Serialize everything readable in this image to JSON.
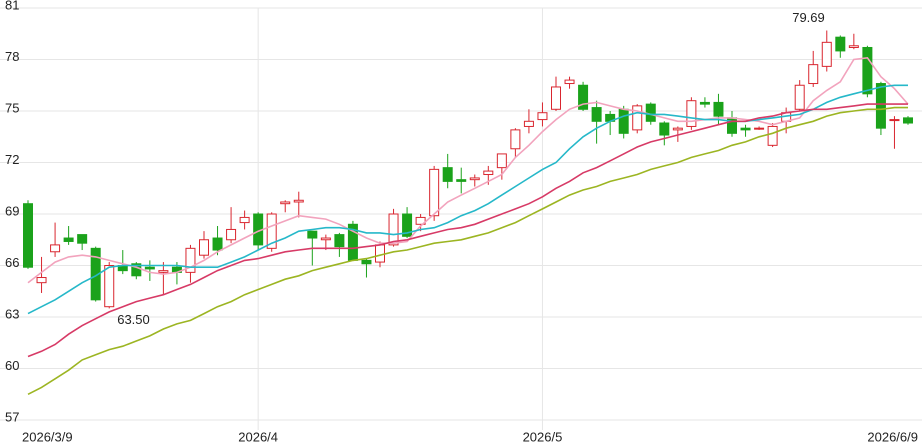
{
  "chart_data": {
    "type": "candlestick",
    "categories": [
      "2026/3/9",
      null,
      null,
      null,
      null,
      null,
      null,
      null,
      null,
      null,
      null,
      null,
      null,
      null,
      null,
      null,
      null,
      "2026/4",
      null,
      null,
      null,
      null,
      null,
      null,
      null,
      null,
      null,
      null,
      null,
      null,
      null,
      null,
      null,
      null,
      null,
      null,
      null,
      null,
      "2026/5",
      null,
      null,
      null,
      null,
      null,
      null,
      null,
      null,
      null,
      null,
      null,
      null,
      null,
      null,
      null,
      null,
      null,
      null,
      null,
      null,
      null,
      null,
      null,
      null,
      null,
      null,
      "2026/6/9"
    ],
    "open": [
      69.6,
      65.0,
      66.8,
      67.6,
      67.8,
      67.0,
      63.6,
      66.0,
      66.1,
      65.9,
      65.6,
      65.9,
      65.6,
      66.6,
      67.6,
      67.5,
      68.5,
      69.0,
      67.0,
      69.6,
      69.7,
      68.0,
      67.5,
      67.8,
      68.4,
      66.3,
      66.2,
      67.2,
      69.0,
      68.4,
      68.9,
      71.7,
      71.0,
      71.0,
      71.3,
      71.7,
      72.8,
      74.1,
      74.5,
      75.1,
      76.6,
      76.5,
      75.2,
      74.8,
      75.1,
      73.9,
      75.4,
      74.3,
      73.9,
      74.1,
      75.5,
      75.5,
      74.6,
      74.0,
      74.0,
      73.0,
      74.4,
      75.1,
      76.6,
      77.6,
      79.3,
      78.7,
      78.7,
      76.6,
      74.5,
      74.6
    ],
    "high": [
      69.8,
      66.5,
      68.5,
      68.3,
      67.8,
      67.1,
      66.2,
      66.9,
      66.2,
      66.3,
      66.2,
      66.2,
      67.2,
      68.0,
      68.3,
      69.4,
      69.2,
      69.1,
      69.1,
      69.8,
      70.3,
      68.0,
      67.8,
      67.9,
      68.6,
      66.4,
      67.4,
      69.3,
      69.4,
      69.0,
      71.8,
      72.5,
      71.7,
      71.3,
      71.8,
      72.5,
      74.0,
      75.1,
      75.5,
      77.0,
      77.0,
      76.7,
      75.6,
      75.0,
      75.3,
      75.4,
      75.5,
      74.4,
      74.1,
      75.8,
      75.8,
      76.0,
      75.0,
      74.2,
      74.1,
      74.3,
      75.2,
      76.8,
      78.5,
      79.69,
      79.4,
      79.5,
      78.8,
      76.7,
      74.7,
      74.7
    ],
    "low": [
      65.8,
      64.4,
      66.5,
      67.2,
      66.9,
      63.9,
      63.5,
      65.5,
      65.2,
      65.1,
      64.3,
      64.9,
      65.0,
      66.4,
      66.6,
      67.3,
      68.1,
      66.9,
      66.8,
      69.1,
      68.8,
      66.0,
      66.9,
      66.5,
      66.3,
      65.3,
      65.9,
      67.1,
      67.6,
      68.0,
      68.6,
      70.5,
      70.2,
      70.6,
      70.7,
      71.0,
      72.3,
      73.7,
      74.1,
      75.0,
      76.3,
      75.0,
      73.1,
      73.6,
      73.4,
      73.7,
      74.2,
      73.0,
      73.2,
      73.9,
      75.2,
      74.2,
      73.5,
      73.5,
      73.9,
      72.9,
      73.7,
      75.0,
      76.4,
      77.3,
      78.1,
      78.6,
      75.8,
      73.6,
      72.8,
      74.2
    ],
    "close": [
      65.9,
      65.3,
      67.2,
      67.4,
      67.3,
      64.0,
      66.0,
      65.7,
      65.4,
      65.8,
      65.7,
      65.6,
      67.0,
      67.5,
      66.9,
      68.1,
      68.8,
      67.2,
      69.0,
      69.7,
      69.8,
      67.6,
      67.6,
      67.1,
      66.3,
      66.1,
      67.2,
      69.0,
      67.7,
      68.8,
      71.6,
      70.9,
      70.9,
      71.1,
      71.5,
      72.5,
      73.9,
      74.4,
      74.9,
      76.4,
      76.8,
      75.1,
      74.4,
      74.4,
      73.7,
      75.3,
      74.4,
      73.6,
      74.0,
      75.6,
      75.4,
      74.7,
      73.7,
      73.9,
      74.0,
      74.1,
      74.9,
      76.5,
      77.7,
      79.0,
      78.5,
      78.8,
      76.0,
      74.0,
      74.5,
      74.3
    ],
    "up_color": "#d9262f",
    "down_color": "#1ba21b",
    "series": [
      {
        "color": "#f2a3bd",
        "values": [
          65.0,
          65.6,
          66.2,
          66.5,
          66.6,
          66.5,
          66.3,
          66.1,
          65.9,
          65.6,
          65.5,
          65.6,
          65.9,
          66.3,
          66.8,
          67.2,
          67.6,
          68.0,
          68.3,
          68.6,
          68.9,
          68.8,
          68.7,
          68.4,
          68.0,
          67.6,
          67.3,
          67.3,
          67.4,
          68.3,
          69.0,
          69.7,
          70.1,
          70.5,
          70.9,
          71.3,
          72.3,
          73.0,
          73.8,
          74.5,
          75.1,
          75.4,
          75.5,
          75.3,
          75.1,
          75.0,
          74.8,
          74.6,
          74.4,
          74.4,
          74.5,
          74.6,
          74.6,
          74.5,
          74.4,
          74.2,
          74.4,
          74.6,
          75.6,
          76.2,
          76.7,
          78.0,
          78.1,
          77.0,
          76.3,
          75.4
        ]
      },
      {
        "color": "#26b8c9",
        "values": [
          63.2,
          63.6,
          64.0,
          64.5,
          65.0,
          65.4,
          65.9,
          66.0,
          66.0,
          66.0,
          66.0,
          66.0,
          65.9,
          65.9,
          65.9,
          66.2,
          66.5,
          66.9,
          67.3,
          67.6,
          68.0,
          68.1,
          68.2,
          68.2,
          68.1,
          67.9,
          67.9,
          67.8,
          67.9,
          68.1,
          68.2,
          68.5,
          68.9,
          69.2,
          69.6,
          70.1,
          70.6,
          71.1,
          71.6,
          72.0,
          72.8,
          73.5,
          74.0,
          74.4,
          74.7,
          74.9,
          74.8,
          74.8,
          74.7,
          74.6,
          74.5,
          74.5,
          74.4,
          74.4,
          74.5,
          74.6,
          74.7,
          74.8,
          75.1,
          75.5,
          75.8,
          76.0,
          76.2,
          76.4,
          76.5,
          76.5
        ]
      },
      {
        "color": "#d73a66",
        "values": [
          60.7,
          61.0,
          61.4,
          62.0,
          62.5,
          62.9,
          63.3,
          63.6,
          63.9,
          64.1,
          64.3,
          64.6,
          64.9,
          65.3,
          65.7,
          66.0,
          66.3,
          66.4,
          66.6,
          66.8,
          66.9,
          67.0,
          67.0,
          67.0,
          67.0,
          67.1,
          67.2,
          67.4,
          67.5,
          67.7,
          67.9,
          68.1,
          68.2,
          68.4,
          68.7,
          69.0,
          69.3,
          69.6,
          70.0,
          70.5,
          70.9,
          71.4,
          71.7,
          72.1,
          72.5,
          72.9,
          73.2,
          73.4,
          73.6,
          73.8,
          74.0,
          74.2,
          74.4,
          74.4,
          74.6,
          74.7,
          74.9,
          75.0,
          75.1,
          75.1,
          75.2,
          75.3,
          75.4,
          75.4,
          75.4,
          75.4
        ]
      },
      {
        "color": "#9cb522",
        "values": [
          58.5,
          58.9,
          59.4,
          59.9,
          60.5,
          60.8,
          61.1,
          61.3,
          61.6,
          61.9,
          62.3,
          62.6,
          62.8,
          63.2,
          63.6,
          63.9,
          64.3,
          64.6,
          64.9,
          65.2,
          65.4,
          65.7,
          65.9,
          66.1,
          66.3,
          66.4,
          66.6,
          66.8,
          66.9,
          67.1,
          67.3,
          67.4,
          67.5,
          67.7,
          67.9,
          68.2,
          68.5,
          68.9,
          69.3,
          69.7,
          70.1,
          70.4,
          70.6,
          70.9,
          71.1,
          71.3,
          71.6,
          71.8,
          72.0,
          72.3,
          72.5,
          72.7,
          73.0,
          73.2,
          73.5,
          73.7,
          74.0,
          74.2,
          74.4,
          74.7,
          74.9,
          75.0,
          75.1,
          75.1,
          75.2,
          75.2
        ]
      }
    ],
    "annotations": [
      {
        "value": 79.69,
        "label": "79.69"
      },
      {
        "value": 63.5,
        "label": "63.50"
      }
    ],
    "ylim": [
      57,
      81
    ],
    "yticks": [
      57,
      60,
      63,
      66,
      69,
      72,
      75,
      78,
      81
    ],
    "grid": true
  }
}
